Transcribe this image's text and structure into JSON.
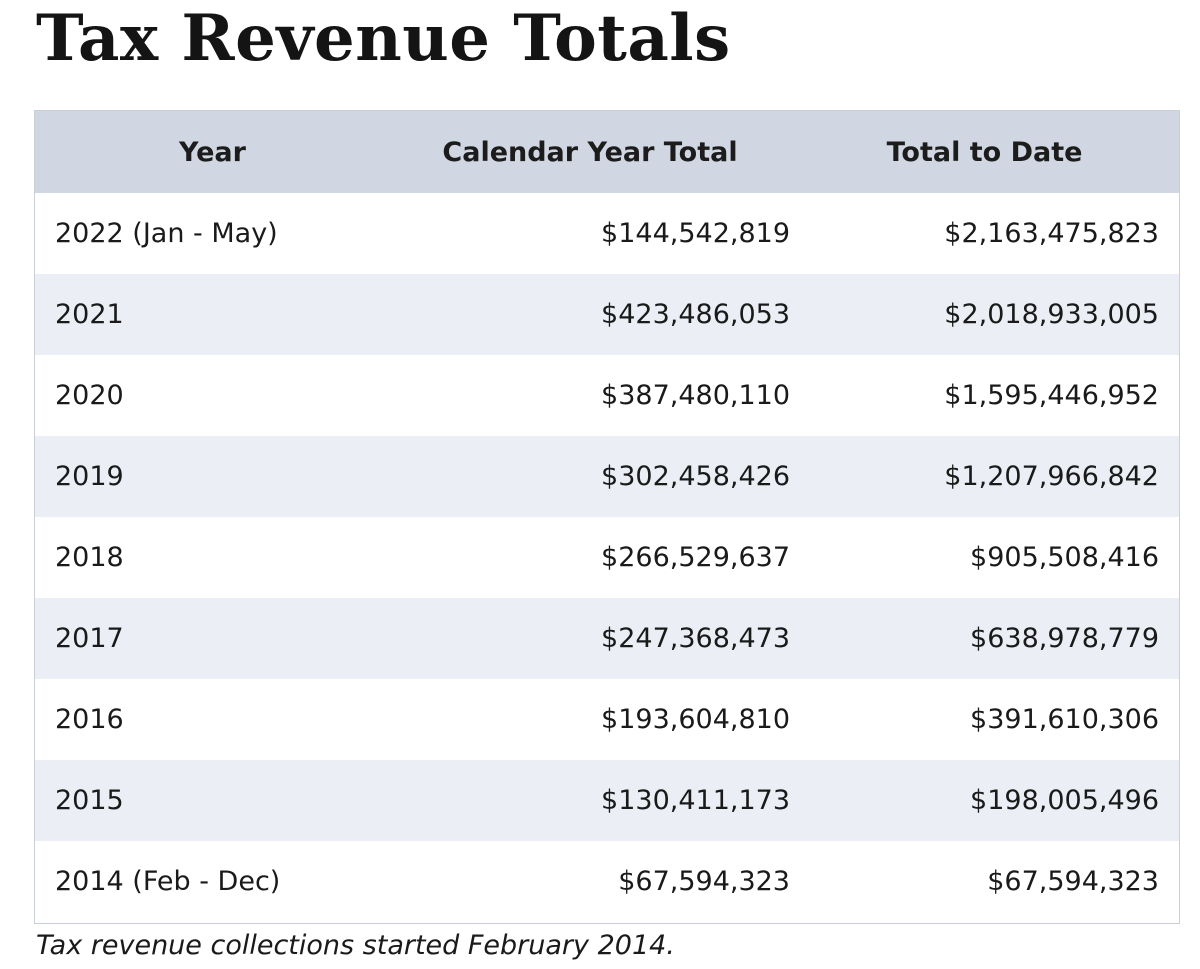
{
  "title": "Tax Revenue Totals",
  "table": {
    "headers": [
      "Year",
      "Calendar Year Total",
      "Total to Date"
    ],
    "rows": [
      {
        "year": "2022 (Jan - May)",
        "calendar_year_total": "$144,542,819",
        "total_to_date": "$2,163,475,823"
      },
      {
        "year": "2021",
        "calendar_year_total": "$423,486,053",
        "total_to_date": "$2,018,933,005"
      },
      {
        "year": "2020",
        "calendar_year_total": "$387,480,110",
        "total_to_date": "$1,595,446,952"
      },
      {
        "year": "2019",
        "calendar_year_total": "$302,458,426",
        "total_to_date": "$1,207,966,842"
      },
      {
        "year": "2018",
        "calendar_year_total": "$266,529,637",
        "total_to_date": "$905,508,416"
      },
      {
        "year": "2017",
        "calendar_year_total": "$247,368,473",
        "total_to_date": "$638,978,779"
      },
      {
        "year": "2016",
        "calendar_year_total": "$193,604,810",
        "total_to_date": "$391,610,306"
      },
      {
        "year": "2015",
        "calendar_year_total": "$130,411,173",
        "total_to_date": "$198,005,496"
      },
      {
        "year": "2014 (Feb - Dec)",
        "calendar_year_total": "$67,594,323",
        "total_to_date": "$67,594,323"
      }
    ]
  },
  "note": "Tax revenue collections started February 2014.",
  "colors": {
    "header_background": "#d0d7e2",
    "stripe_background": "#ebeff5",
    "border": "#c9ced8"
  }
}
